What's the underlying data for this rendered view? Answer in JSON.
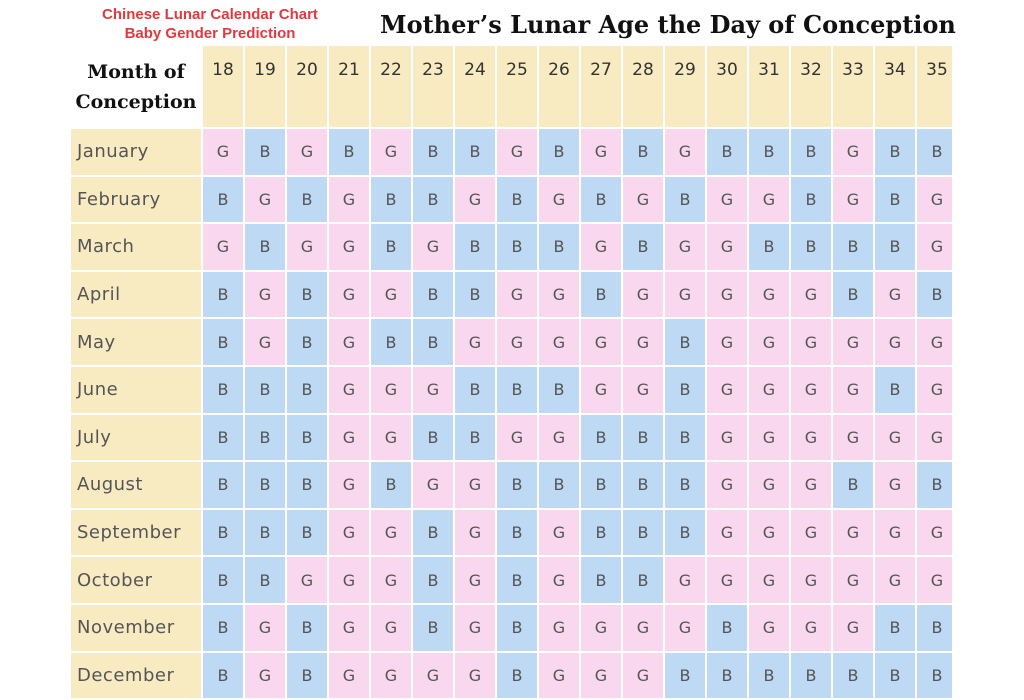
{
  "header": {
    "subtitle_lines": [
      "Chinese Lunar Calendar Chart",
      "Baby Gender Prediction"
    ],
    "title": "Mother’s Lunar Age the Day of Conception"
  },
  "table": {
    "corner_lines": [
      "Month of",
      "Conception"
    ],
    "columns": [
      "18",
      "19",
      "20",
      "21",
      "22",
      "23",
      "24",
      "25",
      "26",
      "27",
      "28",
      "29",
      "30",
      "31",
      "32",
      "33",
      "34",
      "35"
    ],
    "rows": [
      {
        "month": "January",
        "cells": [
          "G",
          "B",
          "G",
          "B",
          "G",
          "B",
          "B",
          "G",
          "B",
          "G",
          "B",
          "G",
          "B",
          "B",
          "B",
          "G",
          "B",
          "B"
        ]
      },
      {
        "month": "February",
        "cells": [
          "B",
          "G",
          "B",
          "G",
          "B",
          "B",
          "G",
          "B",
          "G",
          "B",
          "G",
          "B",
          "G",
          "G",
          "B",
          "G",
          "B",
          "G"
        ]
      },
      {
        "month": "March",
        "cells": [
          "G",
          "B",
          "G",
          "G",
          "B",
          "G",
          "B",
          "B",
          "B",
          "G",
          "B",
          "G",
          "G",
          "B",
          "B",
          "B",
          "B",
          "G"
        ]
      },
      {
        "month": "April",
        "cells": [
          "B",
          "G",
          "B",
          "G",
          "G",
          "B",
          "B",
          "G",
          "G",
          "B",
          "G",
          "G",
          "G",
          "G",
          "G",
          "B",
          "G",
          "B"
        ]
      },
      {
        "month": "May",
        "cells": [
          "B",
          "G",
          "B",
          "G",
          "B",
          "B",
          "G",
          "G",
          "G",
          "G",
          "G",
          "B",
          "G",
          "G",
          "G",
          "G",
          "G",
          "G"
        ]
      },
      {
        "month": "June",
        "cells": [
          "B",
          "B",
          "B",
          "G",
          "G",
          "G",
          "B",
          "B",
          "B",
          "G",
          "G",
          "B",
          "G",
          "G",
          "G",
          "G",
          "B",
          "G"
        ]
      },
      {
        "month": "July",
        "cells": [
          "B",
          "B",
          "B",
          "G",
          "G",
          "B",
          "B",
          "G",
          "G",
          "B",
          "B",
          "B",
          "G",
          "G",
          "G",
          "G",
          "G",
          "G"
        ]
      },
      {
        "month": "August",
        "cells": [
          "B",
          "B",
          "B",
          "G",
          "B",
          "G",
          "G",
          "B",
          "B",
          "B",
          "B",
          "B",
          "G",
          "G",
          "G",
          "B",
          "G",
          "B"
        ]
      },
      {
        "month": "September",
        "cells": [
          "B",
          "B",
          "B",
          "G",
          "G",
          "B",
          "G",
          "B",
          "G",
          "B",
          "B",
          "B",
          "G",
          "G",
          "G",
          "G",
          "G",
          "G"
        ]
      },
      {
        "month": "October",
        "cells": [
          "B",
          "B",
          "G",
          "G",
          "G",
          "B",
          "G",
          "B",
          "G",
          "B",
          "B",
          "G",
          "G",
          "G",
          "G",
          "G",
          "G",
          "G"
        ]
      },
      {
        "month": "November",
        "cells": [
          "B",
          "G",
          "B",
          "G",
          "G",
          "B",
          "G",
          "B",
          "G",
          "G",
          "G",
          "G",
          "B",
          "G",
          "G",
          "G",
          "B",
          "B"
        ]
      },
      {
        "month": "December",
        "cells": [
          "B",
          "G",
          "B",
          "G",
          "G",
          "G",
          "G",
          "B",
          "G",
          "G",
          "G",
          "B",
          "B",
          "B",
          "B",
          "B",
          "B",
          "B"
        ]
      }
    ]
  }
}
